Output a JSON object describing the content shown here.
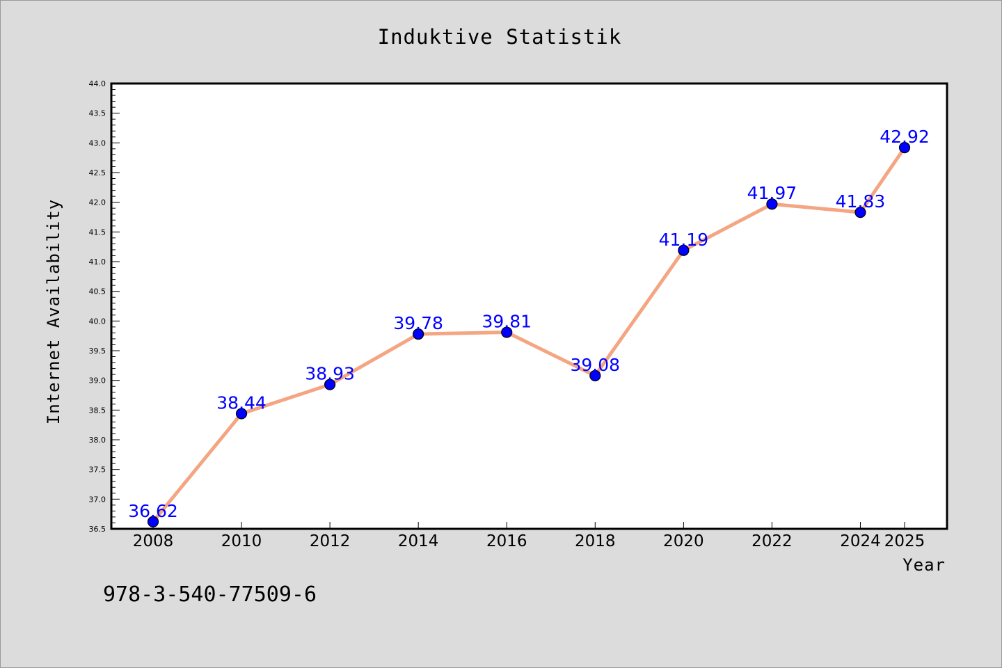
{
  "chart_data": {
    "type": "line",
    "title": "Induktive Statistik",
    "xlabel": "Year",
    "ylabel": "Internet Availability",
    "x": [
      "2008",
      "2010",
      "2012",
      "2014",
      "2016",
      "2018",
      "2020",
      "2022",
      "2024",
      "2025"
    ],
    "series": [
      {
        "values": [
          36.62,
          38.44,
          38.93,
          39.78,
          39.81,
          39.08,
          41.19,
          41.97,
          41.83,
          42.92
        ],
        "labels": [
          "36.62",
          "38.44",
          "38.93",
          "39.78",
          "39.81",
          "39.08",
          "41.19",
          "41.97",
          "41.83",
          "42.92"
        ],
        "line_color": "#f4a582",
        "marker_color": "#0000ff",
        "label_color": "#0000ff"
      }
    ],
    "ylim": [
      36.5,
      44.0
    ],
    "yticks": [
      "36.5",
      "37.0",
      "37.5",
      "38.0",
      "38.5",
      "39.0",
      "39.5",
      "40.0",
      "40.5",
      "41.0",
      "41.5",
      "42.0",
      "42.5",
      "43.0",
      "43.5",
      "44.0"
    ],
    "grid": false,
    "legend": "none"
  },
  "footer": {
    "isbn": "978-3-540-77509-6"
  },
  "colors": {
    "background": "#dcdcdc",
    "plot_background": "#ffffff"
  }
}
